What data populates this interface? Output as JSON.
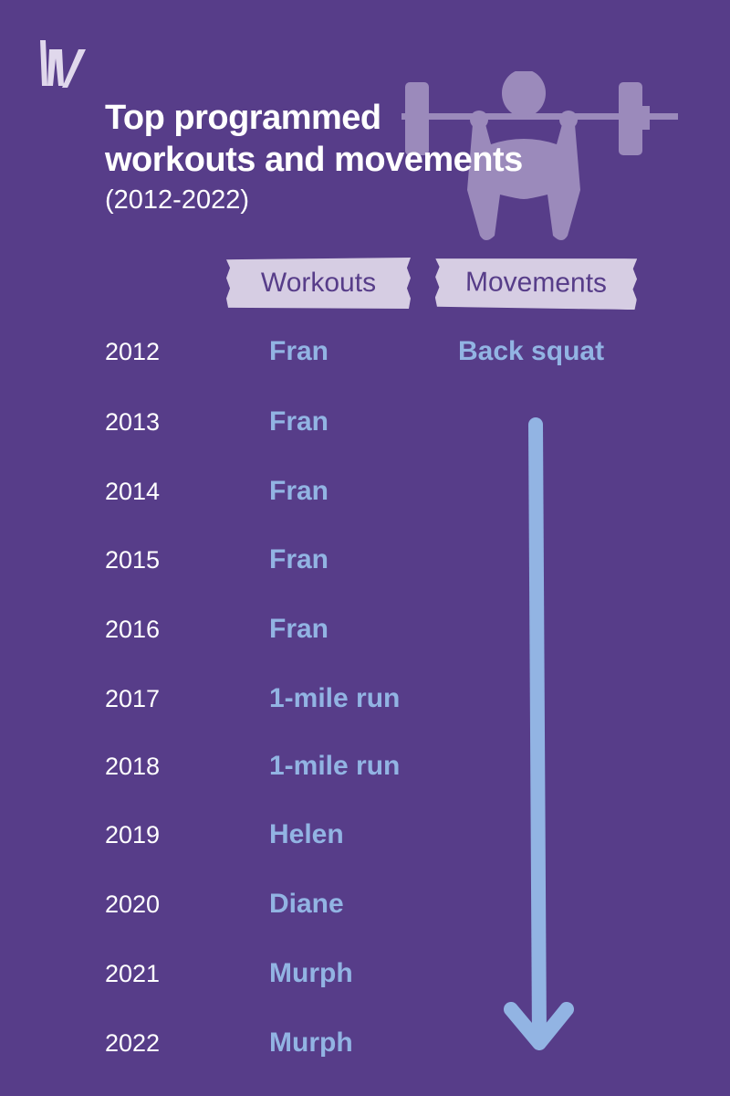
{
  "header": {
    "title_line1": "Top programmed",
    "title_line2": "workouts and movements",
    "subtitle": "(2012-2022)"
  },
  "logo": "W",
  "icons": {
    "logo": "w-logo-icon",
    "illustration": "barbell-squat-icon",
    "arrow": "down-arrow-icon"
  },
  "colors": {
    "background": "#573d89",
    "accent": "#92b4e3",
    "label_bg": "#d6cde3",
    "icon": "#9b8abb"
  },
  "columns": {
    "workouts": "Workouts",
    "movements": "Movements"
  },
  "movement_value": "Back squat",
  "rows": [
    {
      "year": "2012",
      "workout": "Fran"
    },
    {
      "year": "2013",
      "workout": "Fran"
    },
    {
      "year": "2014",
      "workout": "Fran"
    },
    {
      "year": "2015",
      "workout": "Fran"
    },
    {
      "year": "2016",
      "workout": "Fran"
    },
    {
      "year": "2017",
      "workout": "1-mile run"
    },
    {
      "year": "2018",
      "workout": "1-mile run"
    },
    {
      "year": "2019",
      "workout": "Helen"
    },
    {
      "year": "2020",
      "workout": "Diane"
    },
    {
      "year": "2021",
      "workout": "Murph"
    },
    {
      "year": "2022",
      "workout": "Murph"
    }
  ]
}
